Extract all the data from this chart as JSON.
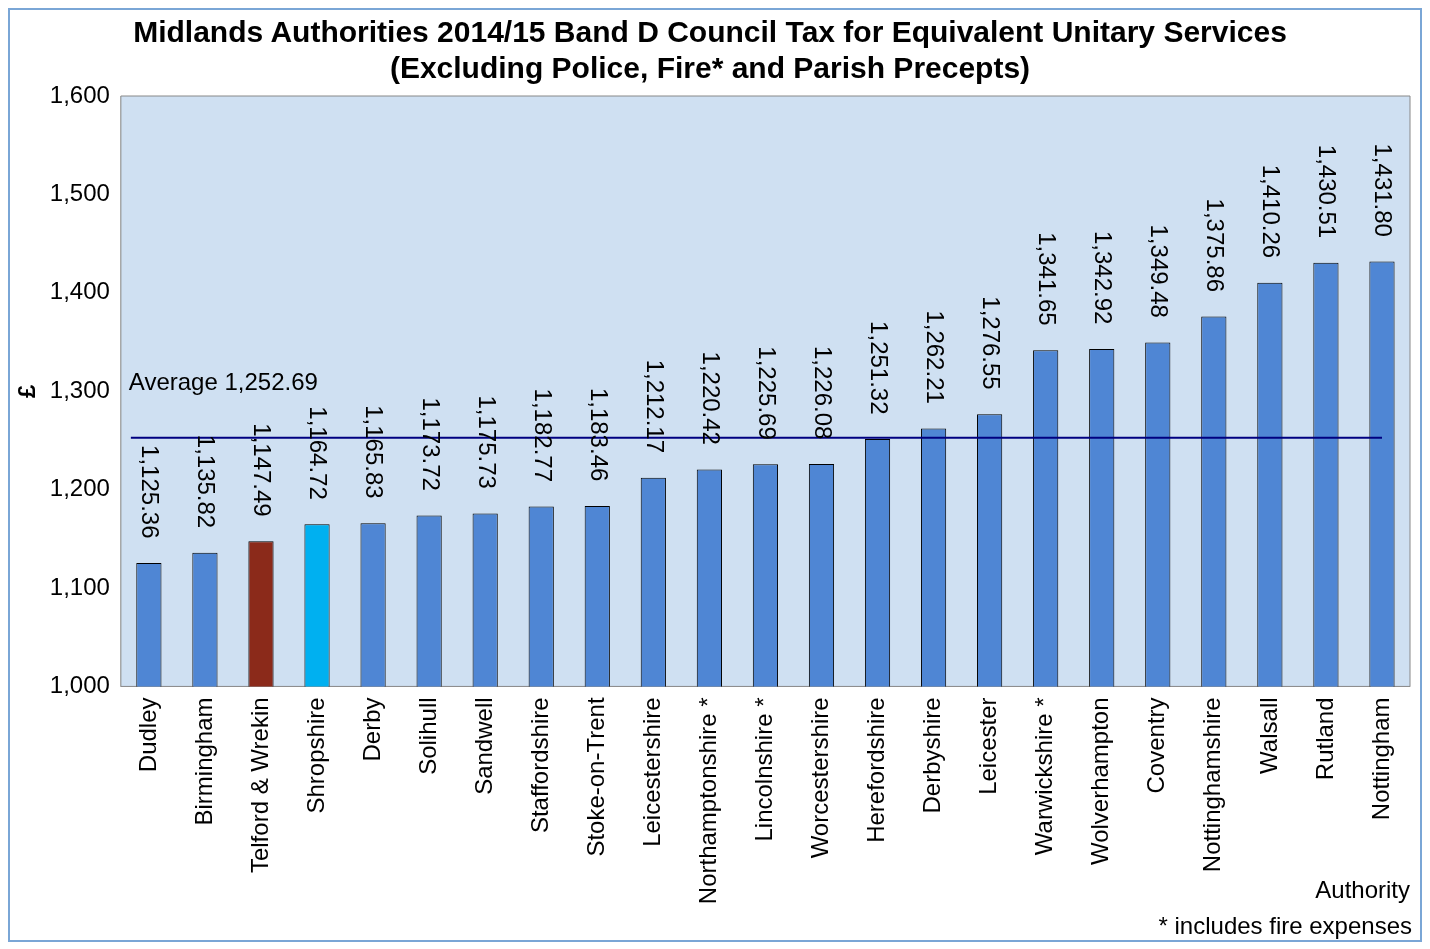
{
  "chart_data": {
    "type": "bar",
    "title": "Midlands Authorities 2014/15 Band D Council Tax for Equivalent Unitary Services\n(Excluding Police, Fire* and Parish Precepts)",
    "xlabel": "Authority",
    "ylabel": "£",
    "categories": [
      "Dudley",
      "Birmingham",
      "Telford & Wrekin",
      "Shropshire",
      "Derby",
      "Solihull",
      "Sandwell",
      "Staffordshire",
      "Stoke-on-Trent",
      "Leicestershire",
      "Northamptonshire *",
      "Lincolnshire *",
      "Worcestershire",
      "Herefordshire",
      "Derbyshire",
      "Leicester",
      "Warwickshire *",
      "Wolverhampton",
      "Coventry",
      "Nottinghamshire",
      "Walsall",
      "Rutland",
      "Nottingham"
    ],
    "values": [
      1125.36,
      1135.82,
      1147.49,
      1164.72,
      1165.83,
      1173.72,
      1175.73,
      1182.77,
      1183.46,
      1212.17,
      1220.42,
      1225.69,
      1226.08,
      1251.32,
      1262.21,
      1276.55,
      1341.65,
      1342.92,
      1349.48,
      1375.86,
      1410.26,
      1430.51,
      1431.8
    ],
    "value_labels": [
      "1,125.36",
      "1,135.82",
      "1,147.49",
      "1,164.72",
      "1,165.83",
      "1,173.72",
      "1,175.73",
      "1,182.77",
      "1,183.46",
      "1,212.17",
      "1,220.42",
      "1,225.69",
      "1,226.08",
      "1,251.32",
      "1,262.21",
      "1,276.55",
      "1,341.65",
      "1,342.92",
      "1,349.48",
      "1,375.86",
      "1,410.26",
      "1,430.51",
      "1,431.80"
    ],
    "colors": [
      "#4f86d4",
      "#4f86d4",
      "#8b2a1a",
      "#00b0f0",
      "#4f86d4",
      "#4f86d4",
      "#4f86d4",
      "#4f86d4",
      "#4f86d4",
      "#4f86d4",
      "#4f86d4",
      "#4f86d4",
      "#4f86d4",
      "#4f86d4",
      "#4f86d4",
      "#4f86d4",
      "#4f86d4",
      "#4f86d4",
      "#4f86d4",
      "#4f86d4",
      "#4f86d4",
      "#4f86d4",
      "#4f86d4"
    ],
    "ylim": [
      1000,
      1600
    ],
    "yticks": [
      {
        "value": 1000,
        "label": "1,000"
      },
      {
        "value": 1100,
        "label": "1,100"
      },
      {
        "value": 1200,
        "label": "1,200"
      },
      {
        "value": 1300,
        "label": "1,300"
      },
      {
        "value": 1400,
        "label": "1,400"
      },
      {
        "value": 1500,
        "label": "1,500"
      },
      {
        "value": 1600,
        "label": "1,600"
      }
    ],
    "ref_lines": [
      {
        "axis": "y",
        "value": 1252.69,
        "label": "Average 1,252.69",
        "color": "#000080"
      }
    ],
    "annotations": [
      "* includes fire expenses"
    ],
    "legend": false,
    "grid": false
  }
}
